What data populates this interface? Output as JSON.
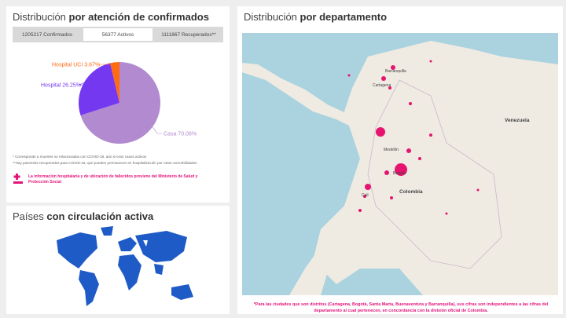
{
  "cases_panel": {
    "title_light": "Distribución",
    "title_bold": "por atención de confirmados",
    "tabs": [
      "1205217 Confirmados",
      "56377 Activos",
      "1111867 Recuperados**"
    ],
    "notes": [
      "* Corresponde a muertes no relacionadas con COVID-19, aún si eran casos activos",
      "**Hay pacientes recuperados para COVID-19, que pueden permanecer en hospitalización por otras comorbilidades"
    ],
    "info": "La información hospitalaria y de ubicación de fallecidos proviene del Ministerio de Salud y Protección Social"
  },
  "chart_data": {
    "type": "pie",
    "categories": [
      "Casa",
      "Hospital",
      "Hospital UCI"
    ],
    "values": [
      70.08,
      26.25,
      3.67
    ],
    "value_labels": [
      "70.08%",
      "26.25%",
      "3.67%"
    ],
    "colors": [
      "#b28ad0",
      "#7438f0",
      "#ff6a13"
    ]
  },
  "countries_panel": {
    "title_light": "Países",
    "title_bold": "con circulación activa"
  },
  "department_panel": {
    "title_light": "Distribución",
    "title_bold": "por departamento",
    "map_labels": [
      "Venezuela",
      "Colombia",
      "Medellín",
      "Bogotá",
      "Barranquilla",
      "Cartagena",
      "Cali"
    ],
    "footnote": "*Para las ciudades que son distritos (Cartagena, Bogotá, Santa Marta, Buenaventura y Barranquilla), sus cifras son independientes a las cifras del departamento al cual pertenecen, en concordancia con la división oficial de Colombia."
  }
}
